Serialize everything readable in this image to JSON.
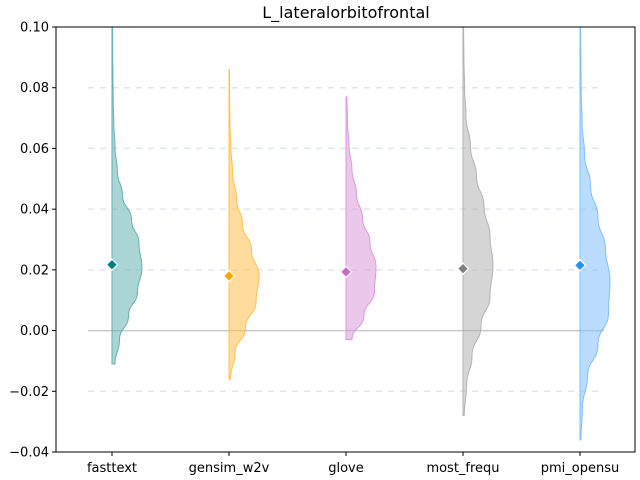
{
  "chart_data": {
    "type": "violin",
    "title": "L_lateralorbitofrontal",
    "xlabel": "",
    "ylabel": "",
    "ylim": [
      -0.04,
      0.1
    ],
    "yticks": [
      -0.04,
      -0.02,
      0.0,
      0.02,
      0.04,
      0.06,
      0.08,
      0.1
    ],
    "ytick_labels": [
      "−0.04",
      "−0.02",
      "0.00",
      "0.02",
      "0.04",
      "0.06",
      "0.08",
      "0.10"
    ],
    "grid_y_dashed": [
      -0.02,
      0.02,
      0.04,
      0.06,
      0.08
    ],
    "zero_line": 0,
    "categories": [
      "fasttext",
      "gensim_w2v",
      "glove",
      "most_frequ",
      "pmi_opensu"
    ],
    "series": [
      {
        "category": "fasttext",
        "color": "#66b2b2",
        "marker_color": "#008080",
        "mean": 0.0217,
        "min": -0.011,
        "max": 0.1,
        "peak": 0.018,
        "density_widths": [
          0.1,
          0.25,
          0.55,
          0.85,
          1.0,
          0.9,
          0.65,
          0.35,
          0.18,
          0.1,
          0.06,
          0.04,
          0.03,
          0.02,
          0.015
        ]
      },
      {
        "category": "gensim_w2v",
        "color": "#ffc04d",
        "marker_color": "#ffa500",
        "mean": 0.018,
        "min": -0.016,
        "max": 0.086,
        "peak": 0.017,
        "density_widths": [
          0.05,
          0.2,
          0.55,
          0.9,
          1.0,
          0.75,
          0.45,
          0.25,
          0.12,
          0.06,
          0.03,
          0.02,
          0.015
        ]
      },
      {
        "category": "glove",
        "color": "#dd99dd",
        "marker_color": "#cc66cc",
        "mean": 0.0193,
        "min": -0.003,
        "max": 0.077,
        "peak": 0.018,
        "density_widths": [
          0.2,
          0.6,
          0.95,
          1.0,
          0.8,
          0.55,
          0.35,
          0.2,
          0.1,
          0.05,
          0.03
        ]
      },
      {
        "category": "most_frequ",
        "color": "#b3b3b3",
        "marker_color": "#808080",
        "mean": 0.0204,
        "min": -0.028,
        "max": 0.1,
        "peak": 0.02,
        "density_widths": [
          0.04,
          0.12,
          0.3,
          0.6,
          0.9,
          1.0,
          0.9,
          0.7,
          0.45,
          0.25,
          0.1,
          0.05,
          0.03,
          0.02
        ]
      },
      {
        "category": "pmi_opensu",
        "color": "#80bfff",
        "marker_color": "#1e90ff",
        "mean": 0.0215,
        "min": -0.036,
        "max": 0.1,
        "peak": 0.02,
        "density_widths": [
          0.03,
          0.08,
          0.25,
          0.6,
          0.95,
          1.0,
          0.85,
          0.6,
          0.35,
          0.15,
          0.07,
          0.04,
          0.03,
          0.02
        ]
      }
    ]
  }
}
